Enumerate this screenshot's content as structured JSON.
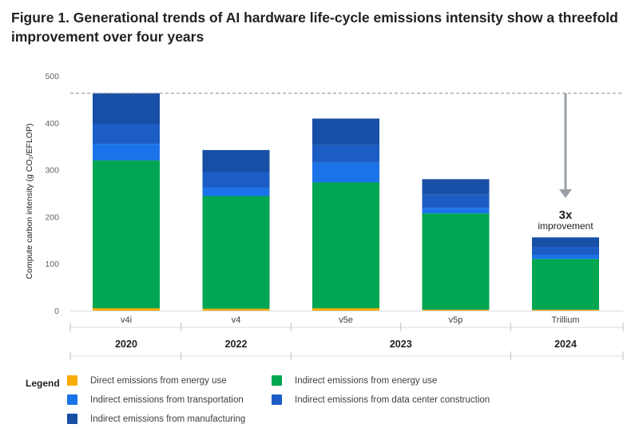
{
  "title": "Figure 1. Generational trends of AI hardware life-cycle emissions intensity show a threefold improvement over four years",
  "chart_data": {
    "type": "bar",
    "stacked": true,
    "ylabel": "Compute carbon intensity (g CO₂/EFLOP)",
    "ylim": [
      0,
      500
    ],
    "yticks": [
      0,
      100,
      200,
      300,
      400,
      500
    ],
    "categories": [
      "v4i",
      "v4",
      "v5e",
      "v5p",
      "Trillium"
    ],
    "years": [
      {
        "label": "2020",
        "categories": [
          "v4i"
        ]
      },
      {
        "label": "2022",
        "categories": [
          "v4"
        ]
      },
      {
        "label": "2023",
        "categories": [
          "v5e",
          "v5p"
        ]
      },
      {
        "label": "2024",
        "categories": [
          "Trillium"
        ]
      }
    ],
    "series": [
      {
        "name": "Direct emissions from energy use",
        "color": "#f9ab00",
        "values": [
          5,
          4,
          5,
          2,
          2
        ]
      },
      {
        "name": "Indirect emissions from energy use",
        "color": "#00a651",
        "values": [
          315,
          240,
          268,
          205,
          108
        ]
      },
      {
        "name": "Indirect emissions from transportation",
        "color": "#1a73e8",
        "values": [
          35,
          18,
          42,
          12,
          9
        ]
      },
      {
        "name": "Indirect emissions from data center construction",
        "color": "#1b5dc4",
        "values": [
          42,
          33,
          38,
          28,
          17
        ]
      },
      {
        "name": "Indirect emissions from manufacturing",
        "color": "#174ea6",
        "values": [
          66,
          47,
          56,
          33,
          20
        ]
      }
    ],
    "reference_line": {
      "value": 463,
      "style": "dashed"
    },
    "annotation": {
      "value": "3x",
      "text": "improvement"
    }
  },
  "legend": {
    "title": "Legend"
  }
}
